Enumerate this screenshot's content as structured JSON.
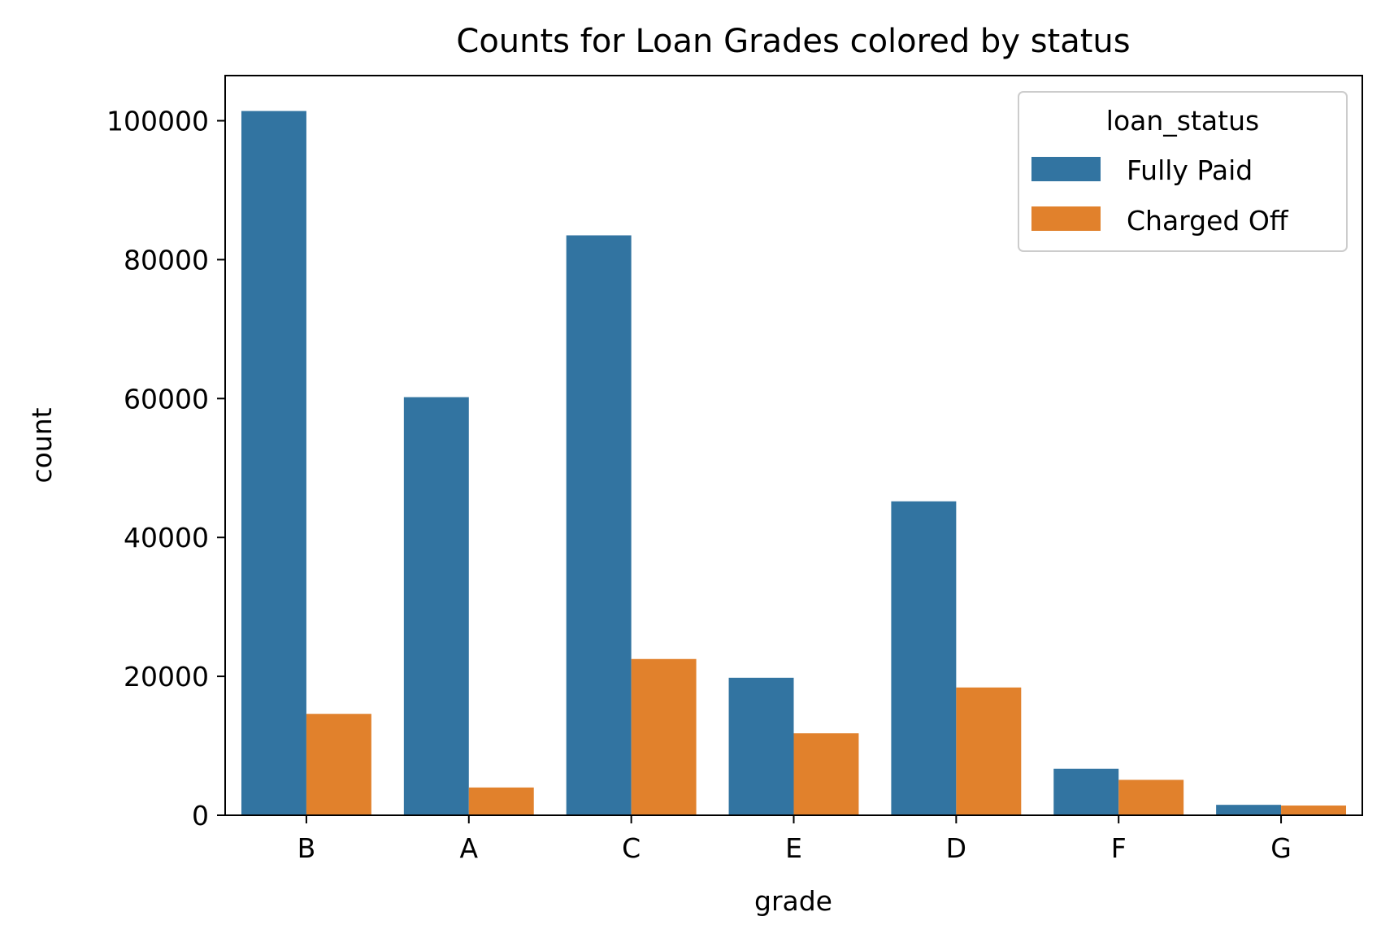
{
  "chart_data": {
    "type": "bar",
    "title": "Counts for Loan Grades colored by status",
    "xlabel": "grade",
    "ylabel": "count",
    "categories": [
      "B",
      "A",
      "C",
      "E",
      "D",
      "F",
      "G"
    ],
    "series": [
      {
        "name": "Fully Paid",
        "color": "#3274a1",
        "values": [
          101400,
          60200,
          83500,
          19800,
          45200,
          6700,
          1500
        ]
      },
      {
        "name": "Charged Off",
        "color": "#e1812c",
        "values": [
          14600,
          4000,
          22500,
          11800,
          18400,
          5100,
          1400
        ]
      }
    ],
    "ylim": [
      0,
      106500
    ],
    "yticks": [
      0,
      20000,
      40000,
      60000,
      80000,
      100000
    ],
    "grid": false,
    "legend": {
      "title": "loan_status",
      "placement": "top-right"
    }
  }
}
